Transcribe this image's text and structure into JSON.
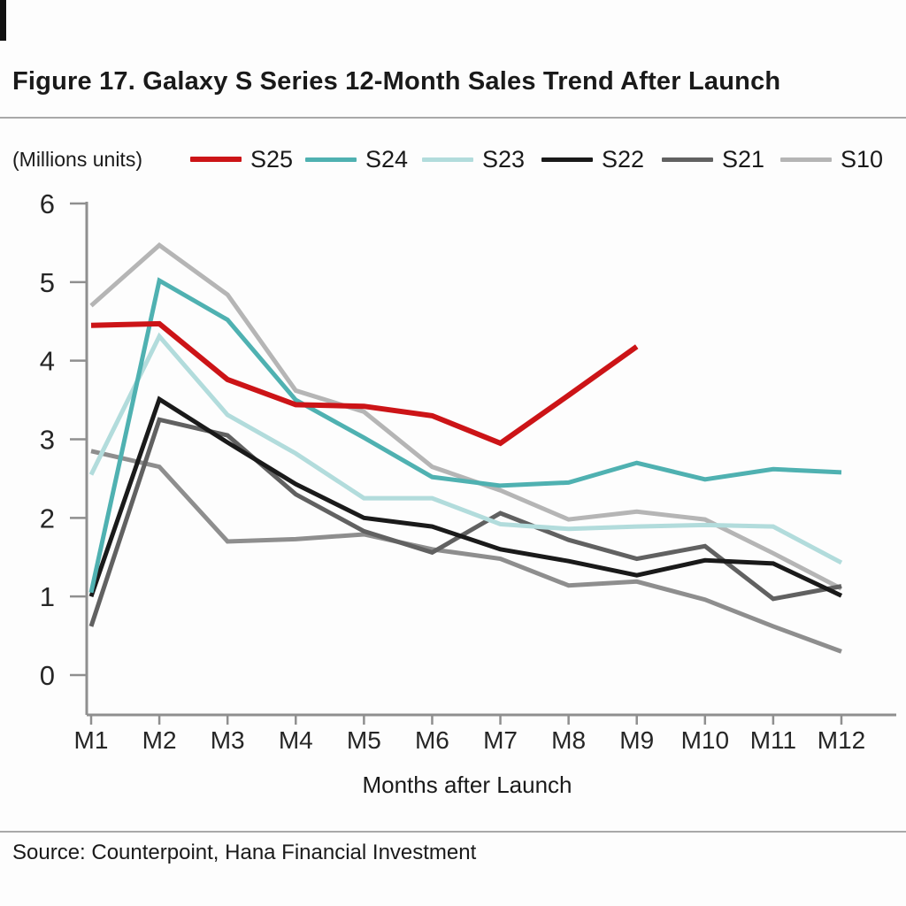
{
  "figure": {
    "title": "Figure 17. Galaxy S Series 12-Month Sales Trend After Launch",
    "units_label": "(Millions units)",
    "x_axis_label": "Months after Launch",
    "source": "Source: Counterpoint, Hana Financial Investment"
  },
  "chart_data": {
    "type": "line",
    "title": "Galaxy S Series 12-Month Sales Trend After Launch",
    "ylabel": "(Millions units)",
    "xlabel": "Months after Launch",
    "categories": [
      "M1",
      "M2",
      "M3",
      "M4",
      "M5",
      "M6",
      "M7",
      "M8",
      "M9",
      "M10",
      "M11",
      "M12"
    ],
    "y_ticks": [
      0,
      1,
      2,
      3,
      4,
      5,
      6
    ],
    "ylim": [
      0,
      6
    ],
    "grid": false,
    "legend_position": "top",
    "series": [
      {
        "name": "S25",
        "color": "#cc1417",
        "stroke_width": 6,
        "in_legend": true,
        "values": [
          4.45,
          4.47,
          3.76,
          3.44,
          3.42,
          3.3,
          2.95,
          3.56,
          4.18,
          null,
          null,
          null
        ]
      },
      {
        "name": "S24",
        "color": "#4fb1b1",
        "stroke_width": 5,
        "in_legend": true,
        "values": [
          1.05,
          5.02,
          4.52,
          3.5,
          3.02,
          2.52,
          2.41,
          2.45,
          2.7,
          2.49,
          2.62,
          2.58
        ]
      },
      {
        "name": "S23",
        "color": "#b2dcdc",
        "stroke_width": 5,
        "in_legend": true,
        "values": [
          2.55,
          4.31,
          3.31,
          2.82,
          2.25,
          2.25,
          1.92,
          1.86,
          1.89,
          1.91,
          1.89,
          1.43
        ]
      },
      {
        "name": "S22",
        "color": "#1a1a1a",
        "stroke_width": 5,
        "in_legend": true,
        "values": [
          1.0,
          3.51,
          2.96,
          2.43,
          2.0,
          1.89,
          1.6,
          1.45,
          1.27,
          1.46,
          1.42,
          1.01
        ]
      },
      {
        "name": "S21",
        "color": "#616161",
        "stroke_width": 5,
        "in_legend": true,
        "values": [
          0.62,
          3.25,
          3.05,
          2.3,
          1.83,
          1.56,
          2.06,
          1.72,
          1.48,
          1.64,
          0.97,
          1.13
        ]
      },
      {
        "name": "S10",
        "color": "#b5b5b5",
        "stroke_width": 5,
        "in_legend": true,
        "values": [
          4.7,
          5.47,
          4.84,
          3.62,
          3.35,
          2.65,
          2.35,
          1.98,
          2.08,
          1.98,
          1.55,
          1.1
        ]
      },
      {
        "name": "(unlabeled)",
        "color": "#8e8e8e",
        "stroke_width": 5,
        "in_legend": false,
        "values": [
          2.85,
          2.65,
          1.7,
          1.73,
          1.79,
          1.6,
          1.48,
          1.14,
          1.19,
          0.96,
          0.62,
          0.3
        ]
      }
    ],
    "legend_x_positions": [
      215,
      345,
      477,
      612,
      748,
      882
    ]
  },
  "layout": {
    "axis_color": "#8f8f8f"
  }
}
